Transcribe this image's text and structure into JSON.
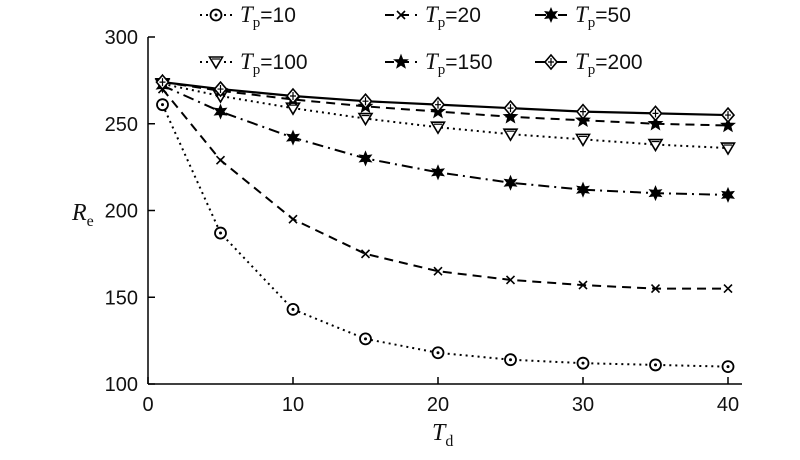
{
  "chart_data": {
    "type": "line",
    "xlabel": "T",
    "xlabel_sub": "d",
    "ylabel": "R",
    "ylabel_sub": "e",
    "xlim": [
      0,
      40
    ],
    "ylim": [
      100,
      300
    ],
    "x_ticks": [
      "0",
      "10",
      "20",
      "30",
      "40"
    ],
    "y_ticks": [
      "100",
      "150",
      "200",
      "250",
      "300"
    ],
    "grid": false,
    "legend_position": "top",
    "series": [
      {
        "name": "Tp=10",
        "name_base": "T",
        "name_sub": "p",
        "name_value": "=10",
        "marker": "circle",
        "dash": "dotted",
        "x": [
          1,
          5,
          10,
          15,
          20,
          25,
          30,
          35,
          40
        ],
        "values": [
          261,
          187,
          143,
          126,
          118,
          114,
          112,
          111,
          110
        ]
      },
      {
        "name": "Tp=20",
        "name_base": "T",
        "name_sub": "p",
        "name_value": "=20",
        "marker": "x",
        "dash": "dashed",
        "x": [
          1,
          5,
          10,
          15,
          20,
          25,
          30,
          35,
          40
        ],
        "values": [
          270,
          229,
          195,
          175,
          165,
          160,
          157,
          155,
          155
        ]
      },
      {
        "name": "Tp=50",
        "name_base": "T",
        "name_sub": "p",
        "name_value": "=50",
        "marker": "star6",
        "dash": "dashdot",
        "x": [
          1,
          5,
          10,
          15,
          20,
          25,
          30,
          35,
          40
        ],
        "values": [
          272,
          257,
          242,
          230,
          222,
          216,
          212,
          210,
          209
        ]
      },
      {
        "name": "Tp=100",
        "name_base": "T",
        "name_sub": "p",
        "name_value": "=100",
        "marker": "triangle-down",
        "dash": "dotted",
        "x": [
          1,
          5,
          10,
          15,
          20,
          25,
          30,
          35,
          40
        ],
        "values": [
          273,
          266,
          259,
          253,
          248,
          244,
          241,
          238,
          236
        ]
      },
      {
        "name": "Tp=150",
        "name_base": "T",
        "name_sub": "p",
        "name_value": "=150",
        "marker": "star5",
        "dash": "dashed",
        "x": [
          1,
          5,
          10,
          15,
          20,
          25,
          30,
          35,
          40
        ],
        "values": [
          274,
          269,
          264,
          260,
          257,
          254,
          252,
          250,
          249
        ]
      },
      {
        "name": "Tp=200",
        "name_base": "T",
        "name_sub": "p",
        "name_value": "=200",
        "marker": "diamond-plus",
        "dash": "solid",
        "x": [
          1,
          5,
          10,
          15,
          20,
          25,
          30,
          35,
          40
        ],
        "values": [
          274,
          270,
          266,
          263,
          261,
          259,
          257,
          256,
          255
        ]
      }
    ]
  }
}
